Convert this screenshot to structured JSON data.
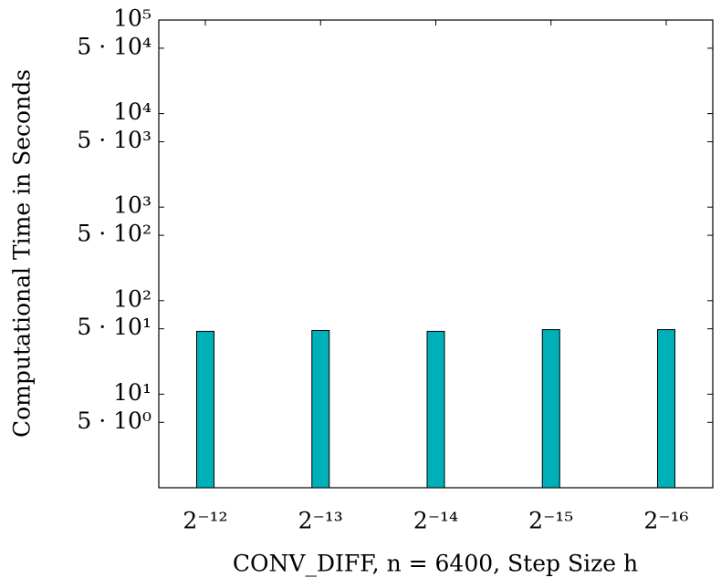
{
  "chart_data": {
    "type": "bar",
    "log_scale": "y",
    "x_label": "CONV_DIFF, n = 6400, Step Size h",
    "y_label": "Computational Time in Seconds",
    "categories": [
      "2⁻¹²",
      "2⁻¹³",
      "2⁻¹⁴",
      "2⁻¹⁵",
      "2⁻¹⁶"
    ],
    "values": [
      47,
      48,
      47,
      49,
      49
    ],
    "color": "#00b0b8",
    "ylim": [
      1,
      100000
    ],
    "yticks": [
      {
        "value": 100000,
        "label": "10⁵"
      },
      {
        "value": 50000,
        "label": "5 · 10⁴"
      },
      {
        "value": 10000,
        "label": "10⁴"
      },
      {
        "value": 5000,
        "label": "5 · 10³"
      },
      {
        "value": 1000,
        "label": "10³"
      },
      {
        "value": 500,
        "label": "5 · 10²"
      },
      {
        "value": 100,
        "label": "10²"
      },
      {
        "value": 50,
        "label": "5 · 10¹"
      },
      {
        "value": 10,
        "label": "10¹"
      },
      {
        "value": 5,
        "label": "5 · 10⁰"
      }
    ]
  }
}
